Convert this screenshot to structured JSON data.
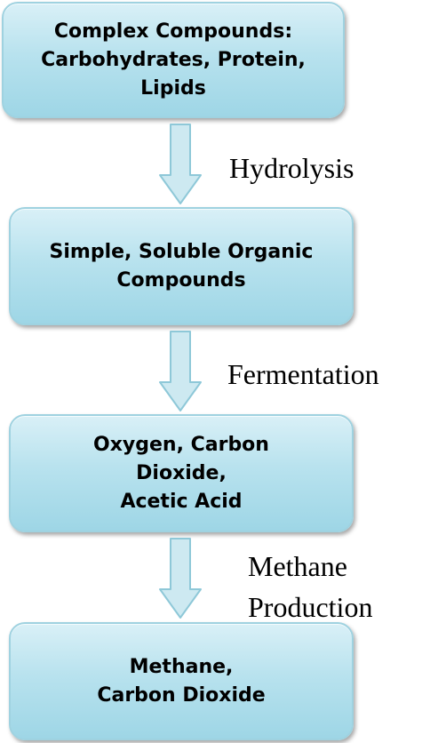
{
  "boxes": [
    {
      "lines": [
        "Complex Compounds:",
        "Carbohydrates, Protein,",
        "Lipids"
      ]
    },
    {
      "lines": [
        "Simple, Soluble Organic",
        "Compounds"
      ]
    },
    {
      "lines": [
        "Oxygen, Carbon",
        "Dioxide,",
        "Acetic Acid"
      ]
    },
    {
      "lines": [
        "Methane,",
        "Carbon Dioxide"
      ]
    }
  ],
  "steps": [
    {
      "lines": [
        "Hydrolysis"
      ]
    },
    {
      "lines": [
        "Fermentation"
      ]
    },
    {
      "lines": [
        "Methane",
        "Production"
      ]
    }
  ],
  "colors": {
    "box_fill_top": "#d9f0f7",
    "box_fill_bottom": "#9ed6e6",
    "box_border": "#9fd2e0",
    "arrow_fill": "#cde9f1",
    "arrow_stroke": "#8ec8d8"
  }
}
